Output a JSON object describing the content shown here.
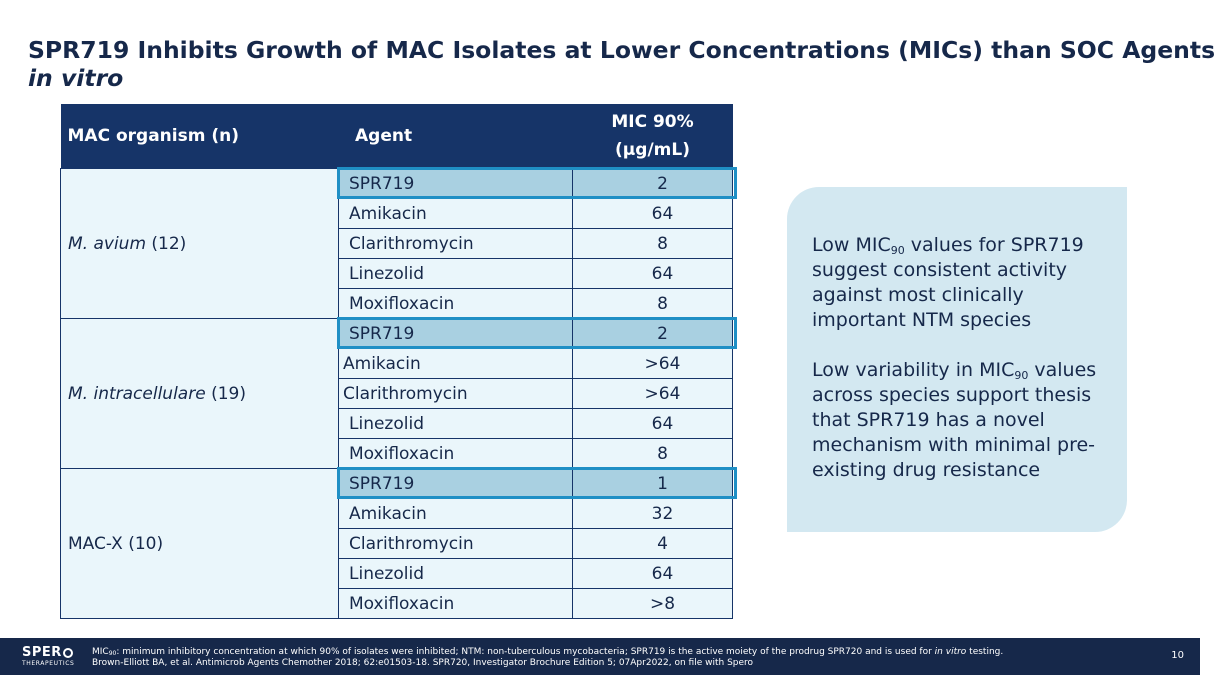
{
  "title": {
    "line1": "SPR719 Inhibits Growth of MAC Isolates at Lower Concentrations (MICs) than SOC Agents",
    "line2": "in vitro"
  },
  "table": {
    "headers": {
      "organism": "MAC organism (n)",
      "agent": "Agent",
      "mic_line1": "MIC 90%",
      "mic_line2": "(µg/mL)"
    },
    "groups": [
      {
        "organism": "M. avium",
        "n": "(12)",
        "rows": [
          {
            "agent": "SPR719",
            "mic": "2"
          },
          {
            "agent": "Amikacin",
            "mic": "64"
          },
          {
            "agent": "Clarithromycin",
            "mic": "8"
          },
          {
            "agent": "Linezolid",
            "mic": "64"
          },
          {
            "agent": "Moxifloxacin",
            "mic": "8"
          }
        ]
      },
      {
        "organism": "M. intracellulare",
        "n": "(19)",
        "rows": [
          {
            "agent": "SPR719",
            "mic": "2"
          },
          {
            "agent": "Amikacin",
            "mic": ">64"
          },
          {
            "agent": "Clarithromycin",
            "mic": ">64"
          },
          {
            "agent": "Linezolid",
            "mic": "64"
          },
          {
            "agent": "Moxifloxacin",
            "mic": "8"
          }
        ]
      },
      {
        "organism": "MAC-X (10)",
        "rows": [
          {
            "agent": "SPR719",
            "mic": "1"
          },
          {
            "agent": "Amikacin",
            "mic": "32"
          },
          {
            "agent": "Clarithromycin",
            "mic": "4"
          },
          {
            "agent": "Linezolid",
            "mic": "64"
          },
          {
            "agent": "Moxifloxacin",
            "mic": ">8"
          }
        ]
      }
    ]
  },
  "callout": {
    "p1": {
      "pre": "Low MIC",
      "sub": "90",
      "post": " values for SPR719 suggest consistent activity against most clinically important NTM species"
    },
    "p2": {
      "pre": "Low variability in MIC",
      "sub": "90",
      "post": " values across species support thesis that SPR719 has a novel mechanism with minimal pre-existing drug resistance"
    }
  },
  "footer": {
    "logo_text": "SPER",
    "logo_sub": "THERAPEUTICS",
    "line1": {
      "pre": "MIC",
      "sub": "90",
      "mid": ": minimum inhibitory concentration at which 90% of isolates were inhibited; NTM: non-tuberculous mycobacteria; SPR719 is the active moiety of the prodrug SPR720 and is used for ",
      "italic": "in vitro",
      "post": " testing."
    },
    "line2": "Brown-Elliott BA, et al. Antimicrob Agents Chemother 2018; 62:e01503-18. SPR720, Investigator Brochure Edition 5; 07Apr2022, on file with Spero",
    "page_number": "10"
  },
  "colors": {
    "navy": "#16284a",
    "header_blue": "#163468",
    "cell_bg": "#eaf6fb",
    "highlight_bg": "#a9d0e1",
    "highlight_border": "#1f8fc5",
    "callout_bg": "#d3e8f1"
  }
}
